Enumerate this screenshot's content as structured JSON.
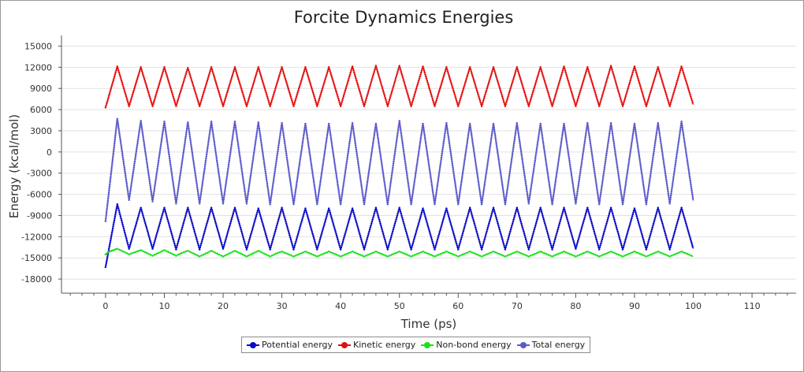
{
  "chart_data": {
    "type": "line",
    "title": "Forcite Dynamics Energies",
    "xlabel": "Time (ps)",
    "ylabel": "Energy (kcal/mol)",
    "xlim": [
      -7.5,
      117.5
    ],
    "ylim": [
      -20000,
      16500
    ],
    "xticks": [
      0,
      10,
      20,
      30,
      40,
      50,
      60,
      70,
      80,
      90,
      100,
      110
    ],
    "xtick_labels": [
      "0",
      "10",
      "20",
      "30",
      "40",
      "50",
      "60",
      "70",
      "80",
      "90",
      "100",
      "110"
    ],
    "xminor_step": 2,
    "yticks": [
      15000,
      12000,
      9000,
      6000,
      3000,
      0,
      -3000,
      -6000,
      -9000,
      -12000,
      -15000,
      -18000
    ],
    "ytick_labels": [
      "15000",
      "12000",
      "9000",
      "6000",
      "3000",
      "0",
      "-3000",
      "-6000",
      "-9000",
      "-12000",
      "-15000",
      "-18000"
    ],
    "grid": true,
    "legend_position": "bottom-center",
    "series": [
      {
        "name": "Potential energy",
        "color": "#0a0acc",
        "x": [
          0,
          2,
          4,
          6,
          8,
          10,
          12,
          14,
          16,
          18,
          20,
          22,
          24,
          26,
          28,
          30,
          32,
          34,
          36,
          38,
          40,
          42,
          44,
          46,
          48,
          50,
          52,
          54,
          56,
          58,
          60,
          62,
          64,
          66,
          68,
          70,
          72,
          74,
          76,
          78,
          80,
          82,
          84,
          86,
          88,
          90,
          92,
          94,
          96,
          98,
          100
        ],
        "values": [
          -16300,
          -7400,
          -13700,
          -7900,
          -13700,
          -7900,
          -13800,
          -7900,
          -13800,
          -7900,
          -13700,
          -7900,
          -13800,
          -8000,
          -13800,
          -7900,
          -13800,
          -8000,
          -13800,
          -8000,
          -13800,
          -8000,
          -13800,
          -7900,
          -13800,
          -7900,
          -13800,
          -8000,
          -13800,
          -8000,
          -13800,
          -7900,
          -13800,
          -7900,
          -13800,
          -7900,
          -13800,
          -7900,
          -13800,
          -7900,
          -13700,
          -7900,
          -13800,
          -7900,
          -13800,
          -8000,
          -13800,
          -7900,
          -13800,
          -7900,
          -13700
        ]
      },
      {
        "name": "Kinetic energy",
        "color": "#e01010",
        "x": [
          0,
          2,
          4,
          6,
          8,
          10,
          12,
          14,
          16,
          18,
          20,
          22,
          24,
          26,
          28,
          30,
          32,
          34,
          36,
          38,
          40,
          42,
          44,
          46,
          48,
          50,
          52,
          54,
          56,
          58,
          60,
          62,
          64,
          66,
          68,
          70,
          72,
          74,
          76,
          78,
          80,
          82,
          84,
          86,
          88,
          90,
          92,
          94,
          96,
          98,
          100
        ],
        "values": [
          6300,
          12100,
          6500,
          12000,
          6500,
          12000,
          6500,
          11900,
          6500,
          12000,
          6500,
          12000,
          6500,
          12000,
          6500,
          12000,
          6500,
          12000,
          6500,
          12000,
          6500,
          12100,
          6500,
          12200,
          6500,
          12200,
          6500,
          12100,
          6500,
          12000,
          6500,
          12000,
          6500,
          12000,
          6500,
          12000,
          6500,
          12000,
          6500,
          12100,
          6500,
          12000,
          6500,
          12200,
          6500,
          12100,
          6500,
          12000,
          6500,
          12100,
          6700
        ]
      },
      {
        "name": "Non-bond energy",
        "color": "#18e018",
        "x": [
          0,
          0.5,
          1,
          1.5,
          2,
          3,
          4,
          5,
          6,
          7,
          8,
          9,
          10,
          11,
          12,
          13,
          14,
          15,
          16,
          17,
          18,
          19,
          20,
          21,
          22,
          23,
          24,
          25,
          26,
          27,
          28,
          29,
          30,
          31,
          32,
          33,
          34,
          35,
          36,
          37,
          38,
          39,
          40,
          41,
          42,
          43,
          44,
          45,
          46,
          47,
          48,
          49,
          50,
          51,
          52,
          53,
          54,
          55,
          56,
          57,
          58,
          59,
          60,
          61,
          62,
          63,
          64,
          65,
          66,
          67,
          68,
          69,
          70,
          71,
          72,
          73,
          74,
          75,
          76,
          77,
          78,
          79,
          80,
          81,
          82,
          83,
          84,
          85,
          86,
          87,
          88,
          89,
          90,
          91,
          92,
          93,
          94,
          95,
          96,
          97,
          98,
          99,
          100
        ],
        "values": [
          -14500,
          -14150,
          -14000,
          -13850,
          -13700,
          -14100,
          -14500,
          -14200,
          -13900,
          -14300,
          -14700,
          -14300,
          -13900,
          -14300,
          -14700,
          -14300,
          -14000,
          -14400,
          -14800,
          -14400,
          -14000,
          -14400,
          -14800,
          -14400,
          -14000,
          -14400,
          -14800,
          -14400,
          -14000,
          -14400,
          -14800,
          -14400,
          -14100,
          -14450,
          -14800,
          -14450,
          -14100,
          -14450,
          -14800,
          -14450,
          -14100,
          -14450,
          -14800,
          -14450,
          -14100,
          -14450,
          -14800,
          -14450,
          -14100,
          -14450,
          -14800,
          -14450,
          -14100,
          -14450,
          -14800,
          -14450,
          -14100,
          -14450,
          -14800,
          -14450,
          -14100,
          -14450,
          -14800,
          -14450,
          -14100,
          -14450,
          -14800,
          -14450,
          -14100,
          -14450,
          -14800,
          -14450,
          -14100,
          -14450,
          -14800,
          -14450,
          -14100,
          -14450,
          -14800,
          -14450,
          -14100,
          -14450,
          -14800,
          -14450,
          -14100,
          -14450,
          -14800,
          -14450,
          -14100,
          -14450,
          -14800,
          -14450,
          -14100,
          -14450,
          -14800,
          -14450,
          -14100,
          -14450,
          -14800,
          -14450,
          -14100,
          -14450,
          -14800
        ]
      },
      {
        "name": "Total energy",
        "color": "#5a5acc",
        "x": [
          0,
          2,
          4,
          6,
          8,
          10,
          12,
          14,
          16,
          18,
          20,
          22,
          24,
          26,
          28,
          30,
          32,
          34,
          36,
          38,
          40,
          42,
          44,
          46,
          48,
          50,
          52,
          54,
          56,
          58,
          60,
          62,
          64,
          66,
          68,
          70,
          72,
          74,
          76,
          78,
          80,
          82,
          84,
          86,
          88,
          90,
          92,
          94,
          96,
          98,
          100
        ],
        "values": [
          -9800,
          4700,
          -6800,
          4400,
          -7000,
          4300,
          -7300,
          4200,
          -7300,
          4300,
          -7300,
          4300,
          -7300,
          4200,
          -7400,
          4100,
          -7400,
          4000,
          -7400,
          4000,
          -7400,
          4100,
          -7400,
          4000,
          -7400,
          4400,
          -7400,
          4000,
          -7400,
          4100,
          -7400,
          4000,
          -7400,
          4000,
          -7400,
          4100,
          -7300,
          4000,
          -7400,
          4000,
          -7300,
          4100,
          -7400,
          4100,
          -7400,
          4000,
          -7400,
          4100,
          -7300,
          4300,
          -6900
        ]
      }
    ]
  }
}
